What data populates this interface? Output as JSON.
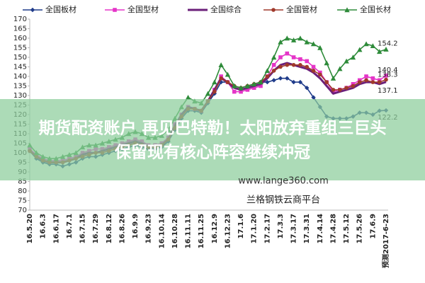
{
  "chart_data": {
    "type": "line",
    "categories": [
      "16.5.20",
      null,
      "16.6.3",
      null,
      "16.6.17",
      null,
      "16.7.1",
      null,
      "16.7.15",
      null,
      "16.7.29",
      null,
      "16.8.12",
      null,
      "16.8.26",
      null,
      "16.9.9",
      null,
      "16.9.23",
      null,
      "16.10.14",
      null,
      "16.10.28",
      null,
      "16.11.11",
      null,
      "16.11.25",
      null,
      "16.12.9",
      null,
      "16.12.23",
      null,
      "17.1.6",
      null,
      "17.1.20",
      null,
      "17.2.17",
      null,
      "17.3.3",
      null,
      "17.3.17",
      null,
      "17.3.31",
      null,
      "17.4.14",
      null,
      "17.4.28",
      null,
      "17.5.12",
      null,
      "17.5.26",
      null,
      "17.6.9",
      null,
      "预测2017-6-23"
    ],
    "series": [
      {
        "name": "全国板材",
        "color": "#1f3b8a",
        "marker": "diamond",
        "values": [
          101,
          97,
          95,
          94,
          94,
          93,
          94,
          95,
          97,
          98,
          98,
          99,
          100,
          101,
          102,
          103,
          104,
          103,
          102,
          102,
          103,
          106,
          112,
          118,
          122,
          122,
          121,
          126,
          131,
          137,
          137,
          135,
          134,
          135,
          136,
          137,
          137,
          138,
          139,
          139,
          137,
          137,
          134,
          129,
          124,
          119,
          118,
          118,
          118,
          119,
          121,
          121,
          120,
          122,
          122.2
        ]
      },
      {
        "name": "全国型材",
        "color": "#e535c8",
        "marker": "square",
        "values": [
          102,
          99,
          97,
          96,
          96,
          96,
          97,
          98,
          100,
          101,
          102,
          102,
          103,
          104,
          105,
          106,
          107,
          106,
          104,
          104,
          105,
          108,
          115,
          120,
          124,
          123,
          122,
          127,
          133,
          140,
          137,
          132,
          132,
          133,
          134,
          135,
          140,
          146,
          150,
          152,
          150,
          149,
          148,
          145,
          142,
          137,
          132,
          133,
          134,
          136,
          138,
          140,
          139,
          138,
          140.4
        ]
      },
      {
        "name": "全国综合",
        "color": "#6b1f7a",
        "marker": "none",
        "values": [
          101,
          98,
          96,
          95,
          95,
          95,
          96,
          97,
          99,
          100,
          100,
          101,
          102,
          103,
          104,
          105,
          106,
          105,
          103,
          103,
          104,
          107,
          114,
          120,
          124,
          123,
          122,
          127,
          133,
          139,
          137,
          134,
          133,
          134,
          135,
          136,
          139,
          143,
          146,
          147,
          146,
          145,
          144,
          142,
          139,
          135,
          131,
          132,
          133,
          134,
          136,
          137,
          137,
          136,
          137.1
        ]
      },
      {
        "name": "全国管材",
        "color": "#a0392b",
        "marker": "circle",
        "values": [
          101,
          98,
          96,
          95,
          95,
          95,
          96,
          97,
          98,
          99,
          100,
          100,
          101,
          102,
          103,
          104,
          105,
          104,
          103,
          103,
          104,
          107,
          113,
          119,
          123,
          123,
          122,
          127,
          132,
          139,
          137,
          135,
          134,
          135,
          136,
          137,
          140,
          143,
          145,
          146,
          146,
          146,
          145,
          143,
          141,
          137,
          133,
          133,
          134,
          135,
          137,
          138,
          137,
          137,
          138.3
        ]
      },
      {
        "name": "全国长材",
        "color": "#2e8b3a",
        "marker": "triangle",
        "values": [
          104,
          100,
          98,
          97,
          97,
          98,
          99,
          100,
          103,
          104,
          104,
          105,
          106,
          107,
          108,
          110,
          111,
          110,
          108,
          108,
          109,
          112,
          118,
          124,
          129,
          127,
          126,
          131,
          137,
          146,
          141,
          135,
          134,
          135,
          136,
          137,
          143,
          150,
          158,
          160,
          159,
          160,
          158,
          157,
          155,
          147,
          139,
          144,
          148,
          150,
          154,
          157,
          156,
          153,
          154.2
        ]
      }
    ],
    "ylim": [
      70,
      170
    ],
    "yticks": [
      70,
      75,
      80,
      85,
      90,
      95,
      100,
      105,
      110,
      115,
      120,
      125,
      130,
      135,
      140,
      145,
      150,
      155,
      160,
      165,
      170
    ],
    "legend": "top",
    "grid": false
  },
  "overlay": {
    "headline": [
      "期货配资账户 再见巴特勒！太阳放弃重组三巨头",
      "保留现有核心阵容继续冲冠"
    ],
    "website": "www.lange360.com",
    "platform": "兰格钢铁云商平台"
  }
}
